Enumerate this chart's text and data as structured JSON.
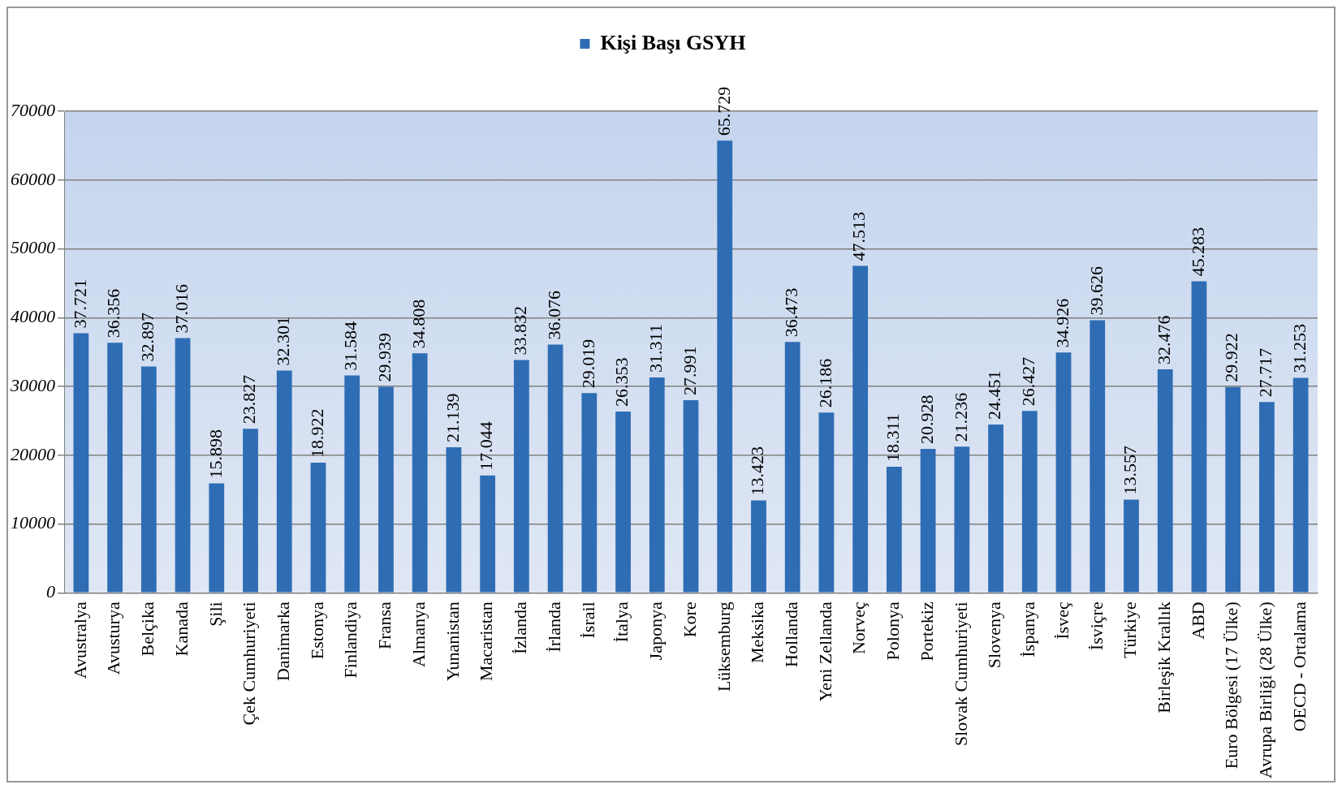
{
  "chart_data": {
    "type": "bar",
    "categories": [
      "Avustralya",
      "Avusturya",
      "Belçika",
      "Kanada",
      "Şili",
      "Çek Cumhuriyeti",
      "Danimarka",
      "Estonya",
      "Finlandiya",
      "Fransa",
      "Almanya",
      "Yunanistan",
      "Macaristan",
      "İzlanda",
      "İrlanda",
      "İsrail",
      "İtalya",
      "Japonya",
      "Kore",
      "Lüksemburg",
      "Meksika",
      "Hollanda",
      "Yeni Zellanda",
      "Norveç",
      "Polonya",
      "Portekiz",
      "Slovak Cumhuriyeti",
      "Slovenya",
      "İspanya",
      "İsveç",
      "İsviçre",
      "Türkiye",
      "Birleşik Krallık",
      "ABD",
      "Euro Bölgesi (17 Ülke)",
      "Avrupa Birliği (28 Ülke)",
      "OECD - Ortalama"
    ],
    "series": [
      {
        "name": "Kişi Başı GSYH",
        "color": "#2e6db4",
        "values": [
          37721,
          36356,
          32897,
          37016,
          15898,
          23827,
          32301,
          18922,
          31584,
          29939,
          34808,
          21139,
          17044,
          33832,
          36076,
          29019,
          26353,
          31311,
          27991,
          65729,
          13423,
          36473,
          26186,
          47513,
          18311,
          20928,
          21236,
          24451,
          26427,
          34926,
          39626,
          13557,
          32476,
          45283,
          29922,
          27717,
          31253
        ],
        "value_labels": [
          "37.721",
          "36.356",
          "32.897",
          "37.016",
          "15.898",
          "23.827",
          "32.301",
          "18.922",
          "31.584",
          "29.939",
          "34.808",
          "21.139",
          "17.044",
          "33.832",
          "36.076",
          "29.019",
          "26.353",
          "31.311",
          "27.991",
          "65.729",
          "13.423",
          "36.473",
          "26.186",
          "47.513",
          "18.311",
          "20.928",
          "21.236",
          "24.451",
          "26.427",
          "34.926",
          "39.626",
          "13.557",
          "32.476",
          "45.283",
          "29.922",
          "27.717",
          "31.253"
        ]
      }
    ],
    "ylim": [
      0,
      70000
    ],
    "yticks": [
      0,
      10000,
      20000,
      30000,
      40000,
      50000,
      60000,
      70000
    ],
    "grid": "y",
    "legend": "top"
  }
}
